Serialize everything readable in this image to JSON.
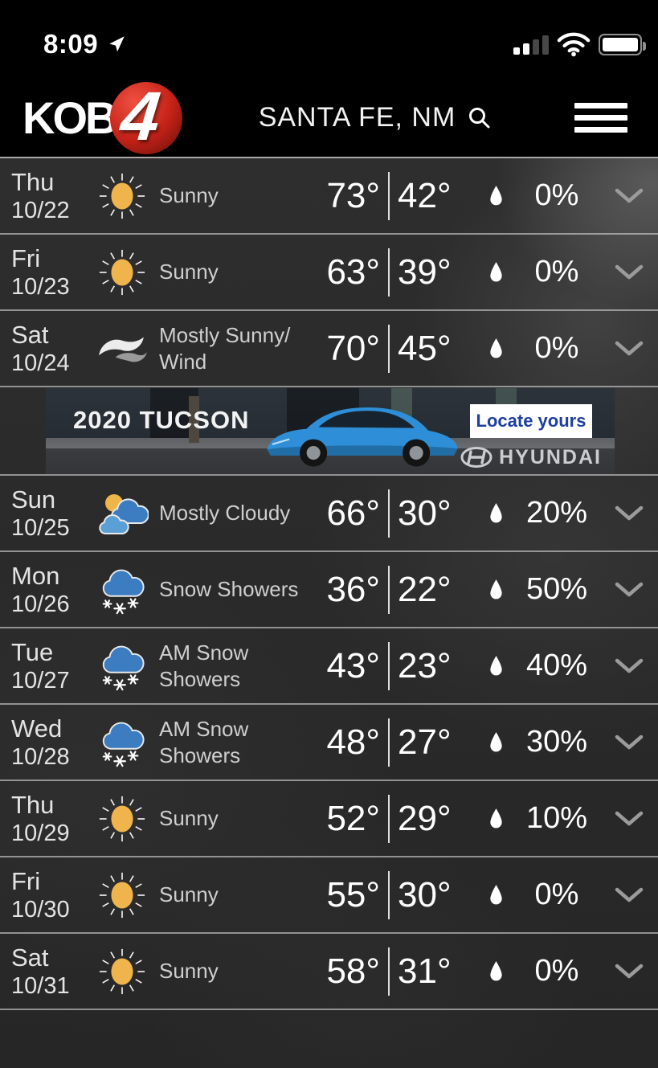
{
  "status_bar": {
    "time": "8:09"
  },
  "header": {
    "logo_text": "KOB",
    "logo_number": "4",
    "location": "SANTA FE, NM"
  },
  "ad": {
    "headline": "2020 TUCSON",
    "cta": "Locate yours",
    "brand": "HYUNDAI"
  },
  "colors": {
    "accent_red": "#c62318",
    "sun_yellow": "#efb44c",
    "cloud_blue": "#3c7cc0",
    "cloud_light_blue": "#5ba0d4",
    "cta_blue": "#1e3fa0",
    "row_divider": "#d2d2d2"
  },
  "forecast": {
    "rows_before_ad": 3,
    "rows": [
      {
        "day": "Thu",
        "date": "10/22",
        "icon": "sunny",
        "condition": "Sunny",
        "high": "73°",
        "low": "42°",
        "precip": "0%"
      },
      {
        "day": "Fri",
        "date": "10/23",
        "icon": "sunny",
        "condition": "Sunny",
        "high": "63°",
        "low": "39°",
        "precip": "0%"
      },
      {
        "day": "Sat",
        "date": "10/24",
        "icon": "wind",
        "condition": "Mostly Sunny/ Wind",
        "high": "70°",
        "low": "45°",
        "precip": "0%"
      },
      {
        "day": "Sun",
        "date": "10/25",
        "icon": "mostly-cloudy",
        "condition": "Mostly Cloudy",
        "high": "66°",
        "low": "30°",
        "precip": "20%"
      },
      {
        "day": "Mon",
        "date": "10/26",
        "icon": "snow-showers",
        "condition": "Snow Showers",
        "high": "36°",
        "low": "22°",
        "precip": "50%"
      },
      {
        "day": "Tue",
        "date": "10/27",
        "icon": "snow-showers",
        "condition": "AM Snow Showers",
        "high": "43°",
        "low": "23°",
        "precip": "40%"
      },
      {
        "day": "Wed",
        "date": "10/28",
        "icon": "snow-showers",
        "condition": "AM Snow Showers",
        "high": "48°",
        "low": "27°",
        "precip": "30%"
      },
      {
        "day": "Thu",
        "date": "10/29",
        "icon": "sunny",
        "condition": "Sunny",
        "high": "52°",
        "low": "29°",
        "precip": "10%"
      },
      {
        "day": "Fri",
        "date": "10/30",
        "icon": "sunny",
        "condition": "Sunny",
        "high": "55°",
        "low": "30°",
        "precip": "0%"
      },
      {
        "day": "Sat",
        "date": "10/31",
        "icon": "sunny",
        "condition": "Sunny",
        "high": "58°",
        "low": "31°",
        "precip": "0%"
      }
    ]
  }
}
